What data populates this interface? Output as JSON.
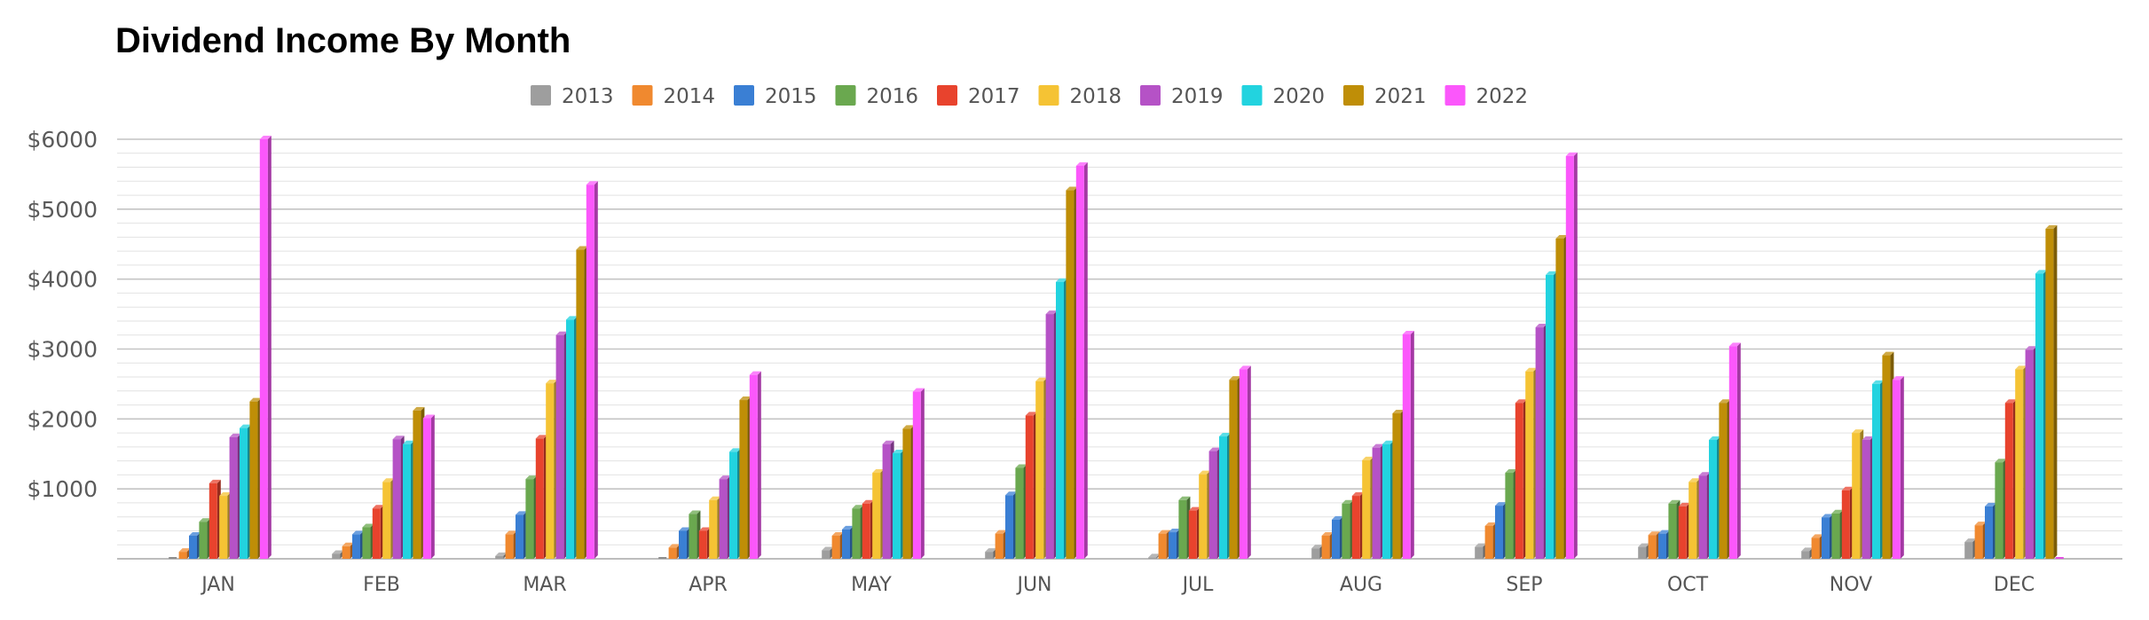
{
  "chart_data": {
    "type": "bar",
    "title": "Dividend Income By Month",
    "xlabel": "",
    "ylabel": "",
    "ylim": [
      0,
      6000
    ],
    "y_ticks": [
      {
        "value": 1000,
        "label": "$1000"
      },
      {
        "value": 2000,
        "label": "$2000"
      },
      {
        "value": 3000,
        "label": "$3000"
      },
      {
        "value": 4000,
        "label": "$4000"
      },
      {
        "value": 5000,
        "label": "$5000"
      },
      {
        "value": 6000,
        "label": "$6000"
      }
    ],
    "grid": true,
    "legend_position": "top",
    "categories": [
      "JAN",
      "FEB",
      "MAR",
      "APR",
      "MAY",
      "JUN",
      "JUL",
      "AUG",
      "SEP",
      "OCT",
      "NOV",
      "DEC"
    ],
    "series": [
      {
        "name": "2013",
        "color": "#9e9e9e",
        "values": [
          0,
          70,
          40,
          0,
          120,
          100,
          20,
          150,
          170,
          170,
          110,
          240
        ]
      },
      {
        "name": "2014",
        "color": "#f0892f",
        "values": [
          100,
          180,
          350,
          160,
          330,
          360,
          360,
          330,
          470,
          340,
          300,
          480
        ]
      },
      {
        "name": "2015",
        "color": "#3a7fd4",
        "values": [
          330,
          350,
          630,
          400,
          420,
          910,
          380,
          560,
          760,
          360,
          590,
          750
        ]
      },
      {
        "name": "2016",
        "color": "#6aa84f",
        "values": [
          530,
          450,
          1140,
          640,
          720,
          1300,
          840,
          790,
          1230,
          790,
          650,
          1380
        ]
      },
      {
        "name": "2017",
        "color": "#e8432d",
        "values": [
          1080,
          720,
          1720,
          400,
          790,
          2050,
          690,
          900,
          2230,
          750,
          980,
          2230
        ]
      },
      {
        "name": "2018",
        "color": "#f5c334",
        "values": [
          900,
          1100,
          2510,
          840,
          1230,
          2540,
          1210,
          1410,
          2680,
          1100,
          1800,
          2710
        ]
      },
      {
        "name": "2019",
        "color": "#b552c6",
        "values": [
          1740,
          1710,
          3200,
          1140,
          1640,
          3500,
          1540,
          1590,
          3310,
          1190,
          1700,
          2990
        ]
      },
      {
        "name": "2020",
        "color": "#22d3df",
        "values": [
          1870,
          1640,
          3420,
          1530,
          1510,
          3960,
          1750,
          1640,
          4060,
          1700,
          2500,
          4080
        ]
      },
      {
        "name": "2021",
        "color": "#bf8e07",
        "values": [
          2250,
          2120,
          4420,
          2270,
          1860,
          5270,
          2560,
          2080,
          4580,
          2230,
          2910,
          4720
        ]
      },
      {
        "name": "2022",
        "color": "#fb57fb",
        "values": [
          6000,
          2010,
          5350,
          2630,
          2390,
          5620,
          2710,
          3210,
          5760,
          3040,
          2560,
          0
        ]
      }
    ]
  }
}
